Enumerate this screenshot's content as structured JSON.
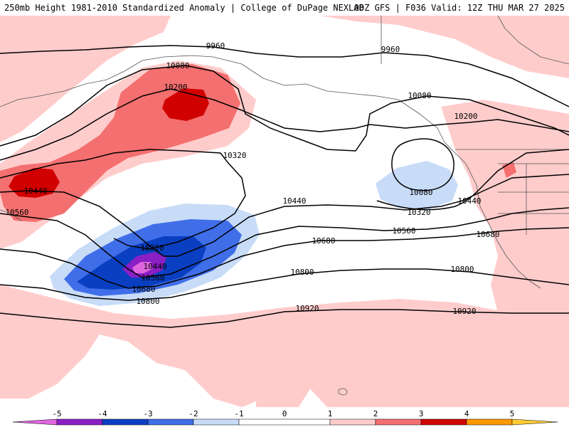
{
  "header": {
    "title_left": "250mb Height 1981-2010 Standardized Anomaly | College of DuPage NEXLAB",
    "title_right": "00Z GFS | F036 Valid: 12Z THU MAR 27 2025"
  },
  "anomaly_colors": {
    "neg5": "#e066e0",
    "neg4": "#8a1fc4",
    "neg3": "#0a3fc2",
    "neg2": "#3f6ee8",
    "neg1": "#c8dcf8",
    "zero": "#ffffff",
    "pos1": "#ffcccc",
    "pos2": "#f46f6f",
    "pos3": "#d10000",
    "pos4": "#ff9900",
    "pos5": "#ffcc33"
  },
  "contour_labels": [
    "9960",
    "9960",
    "10080",
    "10080",
    "10080",
    "10200",
    "10200",
    "10320",
    "10320",
    "10320",
    "10440",
    "10440",
    "10440",
    "10440",
    "10560",
    "10560",
    "10560",
    "10680",
    "10680",
    "10680",
    "10800",
    "10800",
    "10800",
    "10920",
    "10920"
  ],
  "colorbar": {
    "ticks": [
      "-5",
      "-4",
      "-3",
      "-2",
      "-1",
      "0",
      "1",
      "2",
      "3",
      "4",
      "5"
    ]
  }
}
